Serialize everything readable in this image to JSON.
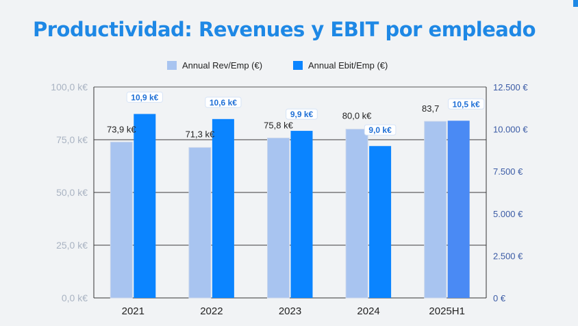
{
  "title": "Productividad: Revenues y EBIT por empleado",
  "colors": {
    "rev": "#a8c4f0",
    "ebit": "#0a84ff",
    "ebit_last": "#4a8af4",
    "title": "#1e88e5",
    "left_axis": "#a9b3c2",
    "right_axis": "#3b5ba5",
    "label_ebit": "#1e6fd6"
  },
  "chart_data": {
    "type": "bar",
    "title": "Productividad: Revenues y EBIT por empleado",
    "categories": [
      "2021",
      "2022",
      "2023",
      "2024",
      "2025H1"
    ],
    "legend_position": "top-center",
    "grid": true,
    "series": [
      {
        "name": "Annual Rev/Emp (€)",
        "axis": "left",
        "values": [
          73.9,
          71.3,
          75.8,
          80.0,
          83.7
        ],
        "labels": [
          "73,9 k€",
          "71,3 k€",
          "75,8 k€",
          "80,0 k€",
          "83,7"
        ]
      },
      {
        "name": "Annual Ebit/Emp (€)",
        "axis": "right",
        "values": [
          10900,
          10600,
          9900,
          9000,
          10500
        ],
        "labels": [
          "10,9 k€",
          "10,6 k€",
          "9,9 k€",
          "9,0 k€",
          "10,5 k€"
        ]
      }
    ],
    "y_left": {
      "lim": [
        0,
        100
      ],
      "ticks": [
        0,
        25,
        50,
        75,
        100
      ],
      "tick_labels": [
        "0,0 k€",
        "25,0 k€",
        "50,0 k€",
        "75,0 k€",
        "100,0 k€"
      ]
    },
    "y_right": {
      "lim": [
        0,
        12500
      ],
      "ticks": [
        0,
        2500,
        5000,
        7500,
        10000,
        12500
      ],
      "tick_labels": [
        "0 €",
        "2.500 €",
        "5.000 €",
        "7.500 €",
        "10.000 €",
        "12.500 €"
      ]
    }
  }
}
